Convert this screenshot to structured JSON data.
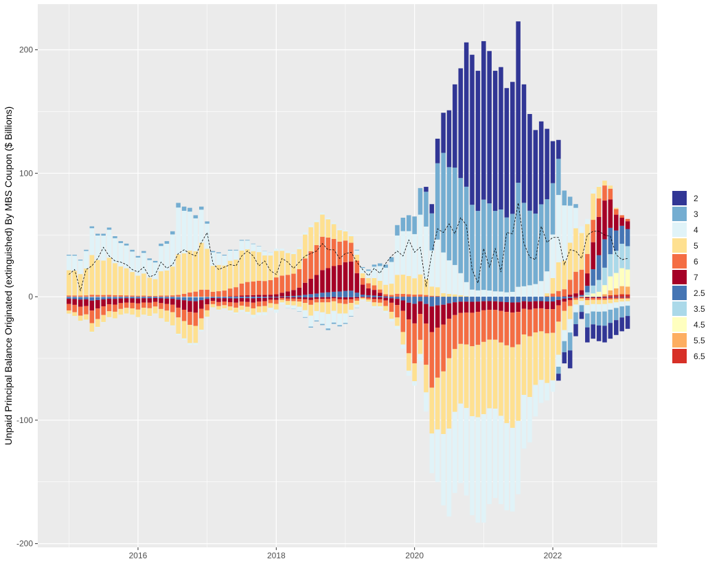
{
  "chart_data": {
    "type": "bar",
    "stacked": true,
    "diverging": true,
    "ylabel": "Unpaid Principal Balance Originated (extinguished) By MBS Coupon ($ Billions)",
    "xlabel": "",
    "title": "",
    "x_range": [
      2014.55,
      2023.51
    ],
    "y_range": [
      -203,
      237
    ],
    "x_ticks": [
      {
        "value": 2016,
        "label": "2016"
      },
      {
        "value": 2018,
        "label": "2018"
      },
      {
        "value": 2020,
        "label": "2020"
      },
      {
        "value": 2022,
        "label": "2022"
      }
    ],
    "y_ticks": [
      {
        "value": -200,
        "label": "-200"
      },
      {
        "value": -100,
        "label": "-100"
      },
      {
        "value": 0,
        "label": "0"
      },
      {
        "value": 100,
        "label": "100"
      },
      {
        "value": 200,
        "label": "200"
      }
    ],
    "grid": true,
    "background": "#ebebeb",
    "legend_position": "right",
    "series_colors": {
      "2": "#313695",
      "2.5": "#4575b4",
      "3": "#74add1",
      "3.5": "#abd9e9",
      "4": "#e0f3f8",
      "4.5": "#ffffbf",
      "5": "#fee090",
      "5.5": "#fdae61",
      "6": "#f46d43",
      "6.5": "#d73027",
      "7": "#a50026"
    },
    "net_line": {
      "style": "dashed",
      "color": "#000000"
    },
    "months": [
      2015.0,
      2015.083,
      2015.167,
      2015.25,
      2015.333,
      2015.417,
      2015.5,
      2015.583,
      2015.667,
      2015.75,
      2015.833,
      2015.917,
      2016.0,
      2016.083,
      2016.167,
      2016.25,
      2016.333,
      2016.417,
      2016.5,
      2016.583,
      2016.667,
      2016.75,
      2016.833,
      2016.917,
      2017.0,
      2017.083,
      2017.167,
      2017.25,
      2017.333,
      2017.417,
      2017.5,
      2017.583,
      2017.667,
      2017.75,
      2017.833,
      2017.917,
      2018.0,
      2018.083,
      2018.167,
      2018.25,
      2018.333,
      2018.417,
      2018.5,
      2018.583,
      2018.667,
      2018.75,
      2018.833,
      2018.917,
      2019.0,
      2019.083,
      2019.167,
      2019.25,
      2019.333,
      2019.417,
      2019.5,
      2019.583,
      2019.667,
      2019.75,
      2019.833,
      2019.917,
      2020.0,
      2020.083,
      2020.167,
      2020.25,
      2020.333,
      2020.417,
      2020.5,
      2020.583,
      2020.667,
      2020.75,
      2020.833,
      2020.917,
      2021.0,
      2021.083,
      2021.167,
      2021.25,
      2021.333,
      2021.417,
      2021.5,
      2021.583,
      2021.667,
      2021.75,
      2021.833,
      2021.917,
      2022.0,
      2022.083,
      2022.167,
      2022.25,
      2022.333,
      2022.417,
      2022.5,
      2022.583,
      2022.667,
      2022.75,
      2022.833,
      2022.917,
      2023.0,
      2023.083
    ],
    "originated_total": [
      34,
      34,
      30,
      38,
      57,
      51,
      51,
      56,
      49,
      45,
      43,
      38,
      33,
      37,
      31,
      29,
      43,
      45,
      53,
      76,
      73,
      72,
      66,
      73,
      61,
      37,
      36,
      34,
      38,
      38,
      46,
      46,
      43,
      41,
      37,
      36,
      39,
      39,
      37,
      36,
      40,
      52,
      58,
      62,
      68,
      64,
      60,
      55,
      54,
      50,
      38,
      24,
      22,
      26,
      27,
      26,
      32,
      58,
      64,
      66,
      65,
      88,
      89,
      75,
      128,
      149,
      151,
      172,
      185,
      206,
      196,
      183,
      207,
      199,
      183,
      186,
      169,
      174,
      223,
      172,
      148,
      135,
      142,
      136,
      126,
      127,
      86,
      81,
      75,
      57,
      63,
      87,
      90,
      94,
      90,
      72,
      66,
      63
    ],
    "extinguished_total": [
      -14,
      -16,
      -20,
      -19,
      -29,
      -25,
      -21,
      -17,
      -18,
      -15,
      -14,
      -15,
      -17,
      -15,
      -16,
      -14,
      -18,
      -21,
      -24,
      -31,
      -35,
      -39,
      -39,
      -28,
      -17,
      -9,
      -11,
      -10,
      -12,
      -14,
      -12,
      -14,
      -17,
      -15,
      -15,
      -11,
      -13,
      -6,
      -9,
      -10,
      -12,
      -17,
      -25,
      -20,
      -23,
      -27,
      -22,
      -24,
      -22,
      -16,
      -9,
      -3,
      -5,
      -9,
      -9,
      -13,
      -20,
      -26,
      -42,
      -64,
      -72,
      -52,
      -93,
      -143,
      -150,
      -169,
      -178,
      -159,
      -151,
      -161,
      -177,
      -183,
      -183,
      -168,
      -163,
      -168,
      -173,
      -174,
      -160,
      -123,
      -118,
      -97,
      -86,
      -84,
      -77,
      -68,
      -54,
      -58,
      -32,
      -18,
      -37,
      -34,
      -36,
      -37,
      -34,
      -31,
      -28,
      -26
    ],
    "net": [
      18,
      22,
      5,
      22,
      25,
      31,
      40,
      33,
      29,
      28,
      26,
      22,
      20,
      24,
      16,
      18,
      28,
      23,
      26,
      35,
      38,
      35,
      33,
      44,
      52,
      27,
      22,
      24,
      26,
      25,
      33,
      37,
      33,
      25,
      29,
      21,
      18,
      31,
      28,
      23,
      28,
      33,
      35,
      37,
      43,
      38,
      38,
      31,
      35,
      36,
      28,
      22,
      17,
      23,
      19,
      27,
      33,
      37,
      33,
      46,
      36,
      40,
      8,
      35,
      55,
      52,
      59,
      51,
      64,
      58,
      22,
      11,
      39,
      24,
      39,
      20,
      52,
      51,
      76,
      43,
      32,
      30,
      57,
      44,
      48,
      48,
      26,
      38,
      37,
      31,
      50,
      53,
      53,
      50,
      49,
      34,
      30,
      31
    ]
  }
}
